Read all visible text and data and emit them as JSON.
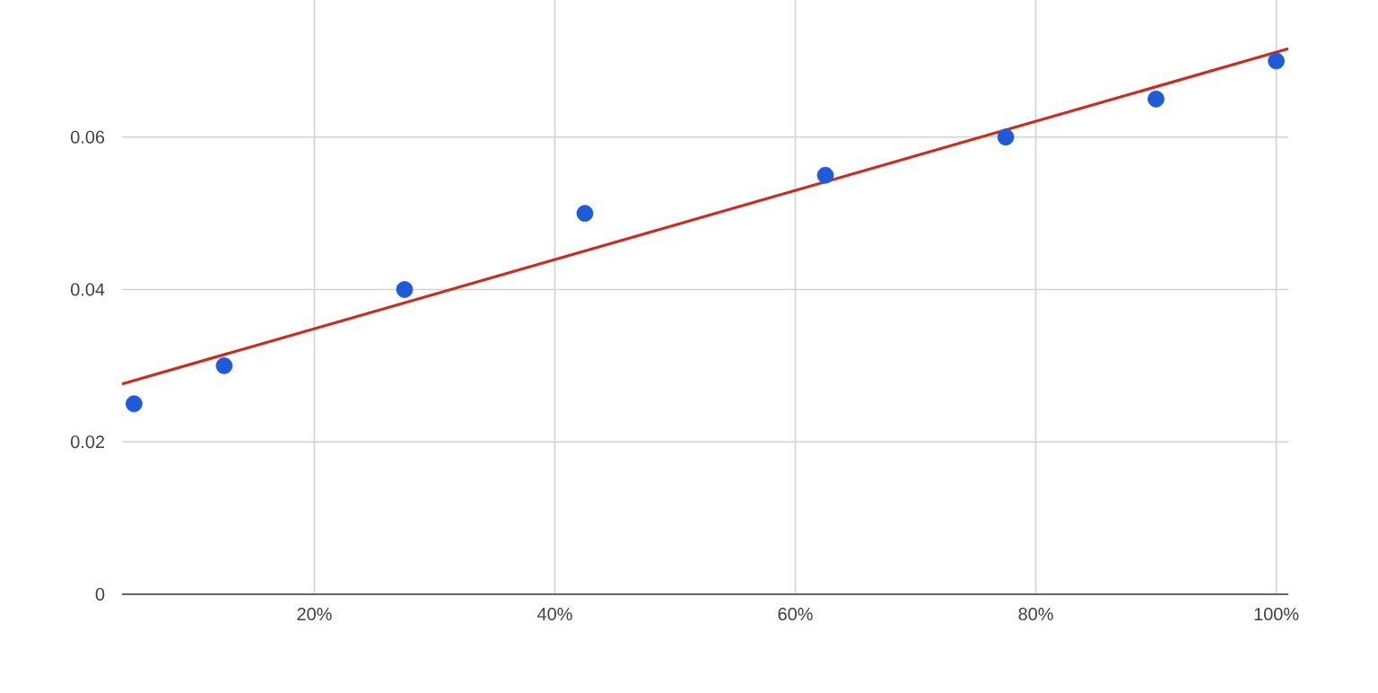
{
  "chart_data": {
    "type": "scatter",
    "xlim": [
      4,
      101
    ],
    "ylim": [
      0,
      0.078
    ],
    "xticks": [
      {
        "value": 20,
        "label": "20%"
      },
      {
        "value": 40,
        "label": "40%"
      },
      {
        "value": 60,
        "label": "60%"
      },
      {
        "value": 80,
        "label": "80%"
      },
      {
        "value": 100,
        "label": "100%"
      }
    ],
    "yticks": [
      0,
      0.02,
      0.04,
      0.06
    ],
    "grid": true,
    "series": [
      {
        "color": "#1f5bd8",
        "marker": "circle",
        "x": [
          5,
          12.5,
          27.5,
          42.5,
          62.5,
          77.5,
          90,
          100
        ],
        "values": [
          0.025,
          0.03,
          0.04,
          0.05,
          0.055,
          0.06,
          0.065,
          0.07
        ]
      },
      {
        "type": "line",
        "color": "#cc2b1d",
        "x": [
          4,
          101
        ],
        "values": [
          0.0276,
          0.0716
        ],
        "line_style": "solid"
      }
    ]
  }
}
